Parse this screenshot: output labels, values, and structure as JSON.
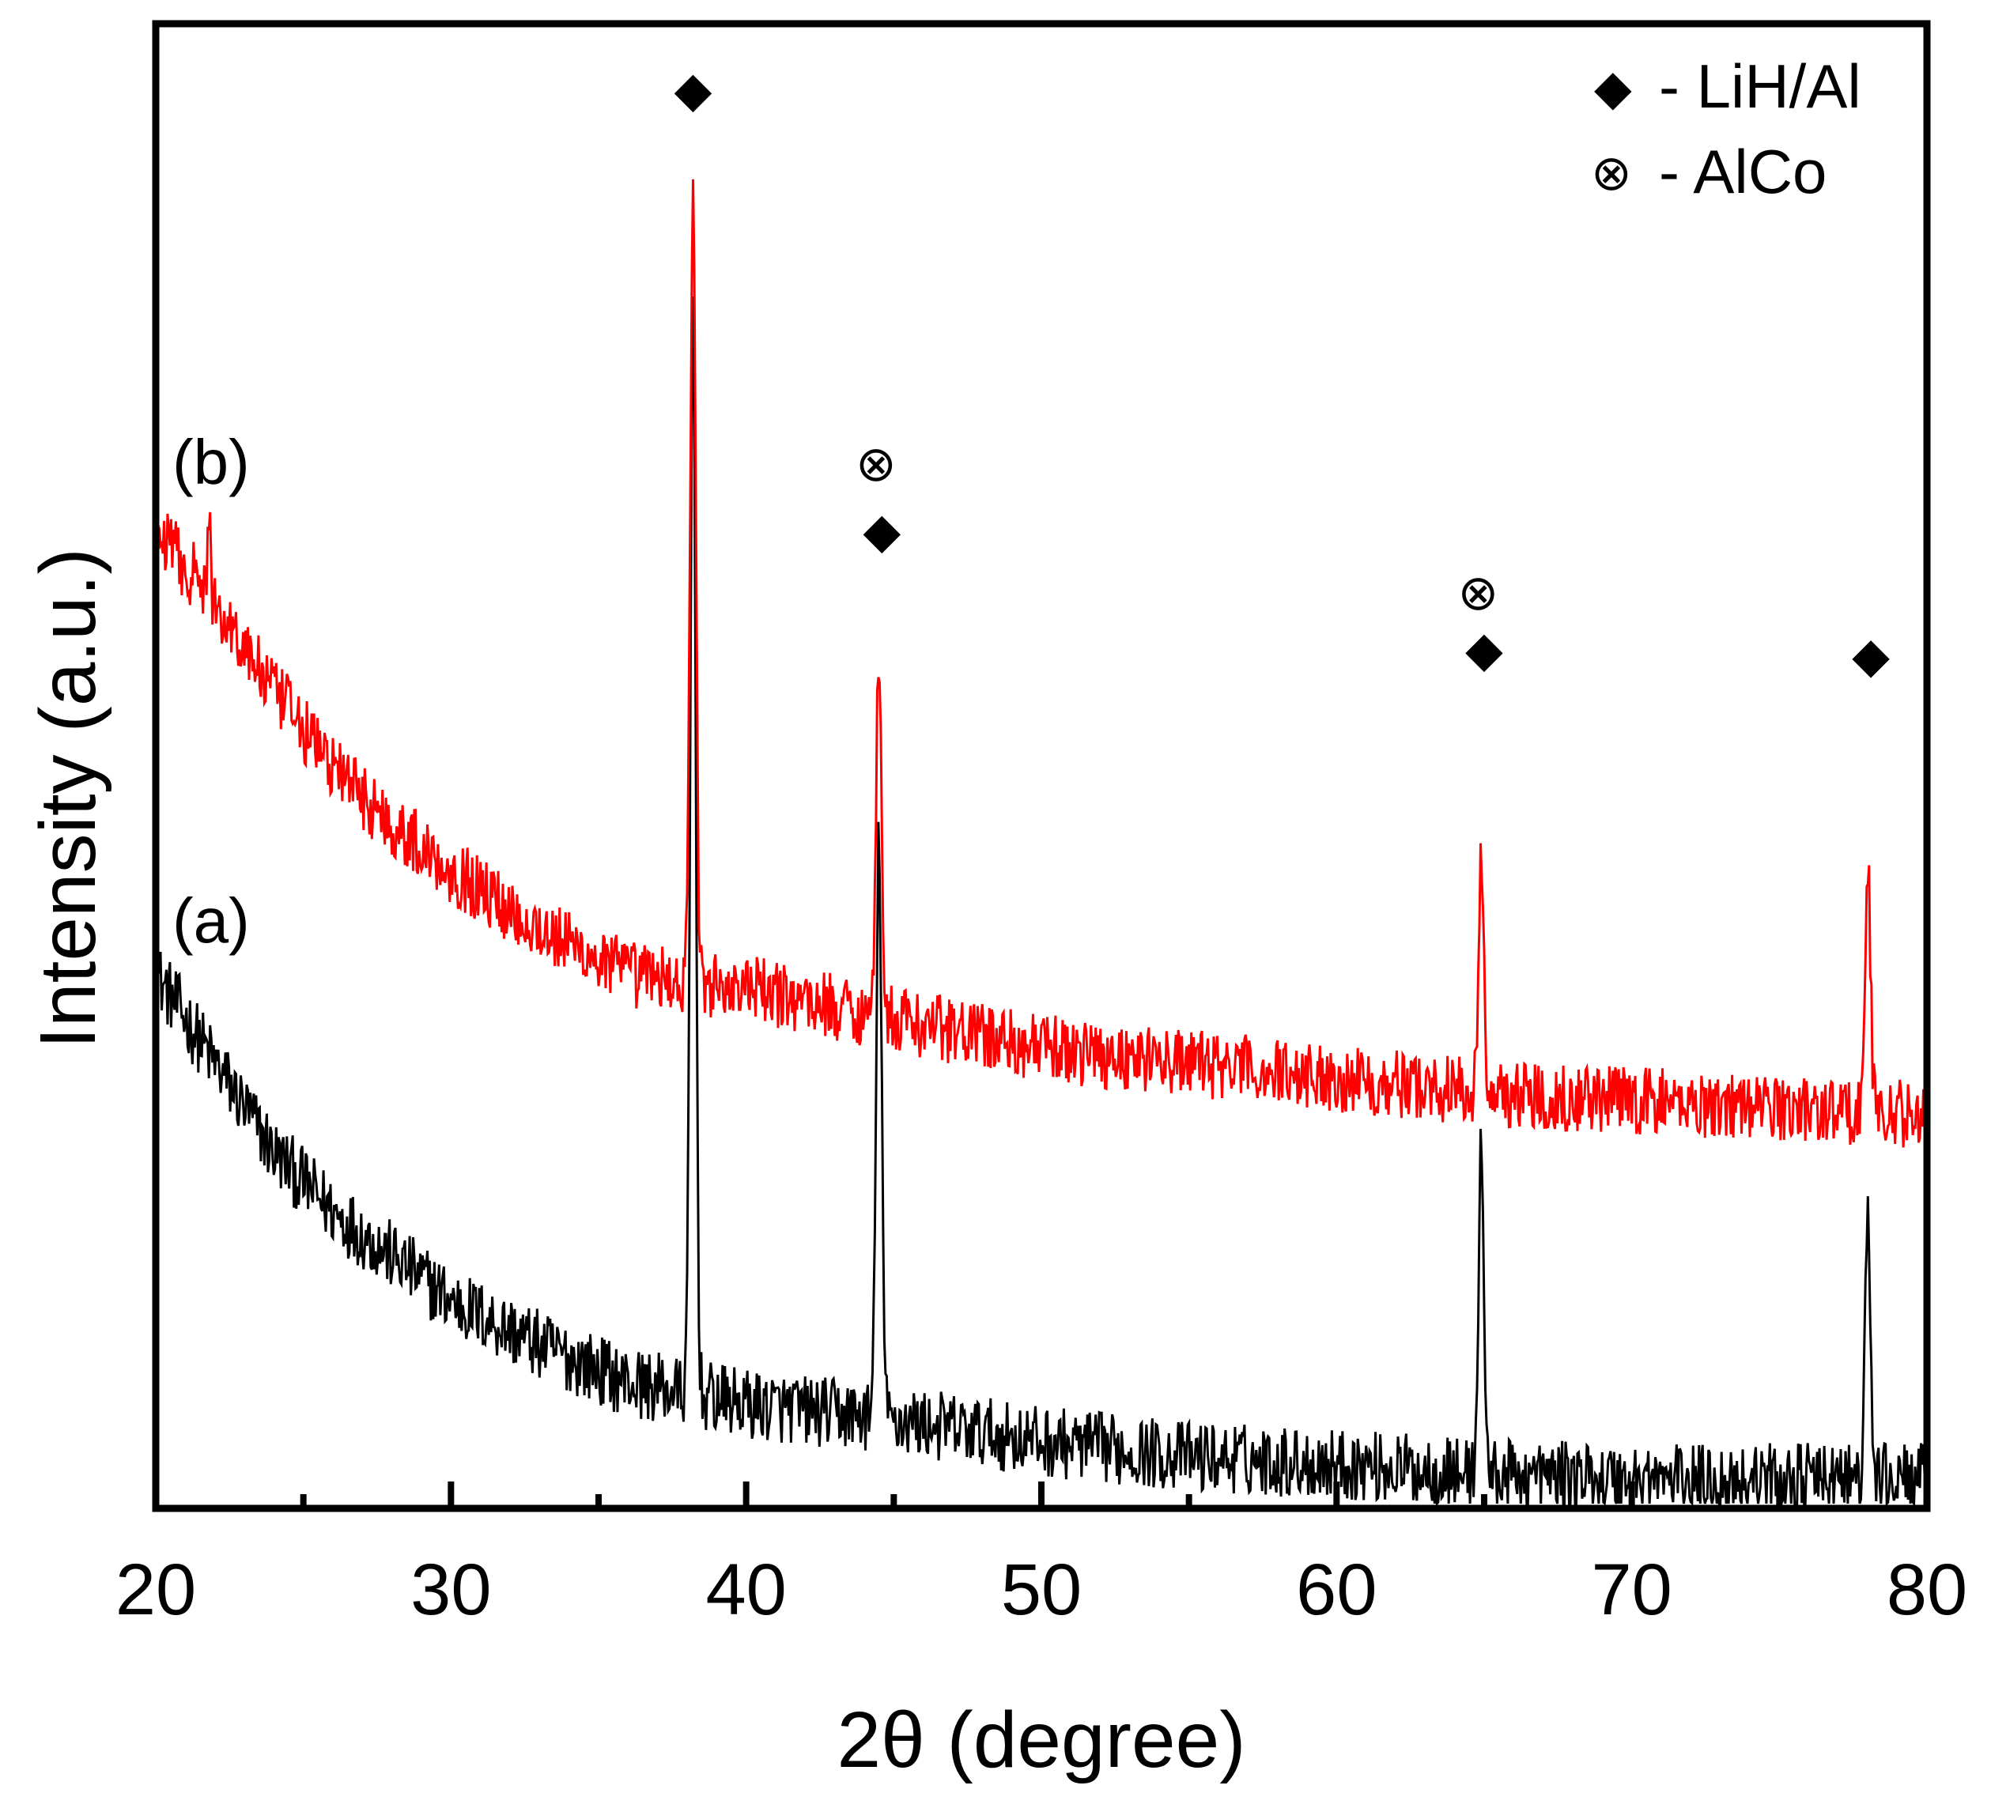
{
  "chart_data": {
    "type": "line",
    "title": "",
    "xlabel": "2θ (degree)",
    "ylabel": "Intensity (a.u.)",
    "xlim": [
      20,
      80
    ],
    "ylim": [
      0,
      100
    ],
    "x_major_ticks": [
      20,
      30,
      40,
      50,
      60,
      70,
      80
    ],
    "x_minor_ticks": [
      25,
      35,
      45,
      55,
      65,
      75
    ],
    "x_tick_labels": [
      "20",
      "30",
      "40",
      "50",
      "60",
      "70",
      "80"
    ],
    "grid": false,
    "legend": {
      "position": "top-right",
      "entries": [
        {
          "symbol": "diamond",
          "glyph": "◆",
          "label": "- LiH/Al"
        },
        {
          "symbol": "circled-times",
          "glyph": "⊗",
          "label": "- AlCo"
        }
      ]
    },
    "series": [
      {
        "name": "(a)",
        "color": "#000000",
        "baseline": [
          [
            20,
            36
          ],
          [
            22,
            30
          ],
          [
            24,
            24
          ],
          [
            26,
            20
          ],
          [
            28,
            17
          ],
          [
            30,
            14
          ],
          [
            33,
            11
          ],
          [
            36,
            8.5
          ],
          [
            40,
            7
          ],
          [
            45,
            6
          ],
          [
            50,
            4.5
          ],
          [
            55,
            3.5
          ],
          [
            60,
            3
          ],
          [
            65,
            2.3
          ],
          [
            70,
            2
          ],
          [
            75,
            2
          ],
          [
            80,
            2
          ]
        ],
        "peaks": [
          [
            38.2,
            81
          ],
          [
            44.5,
            45
          ],
          [
            64.9,
            24
          ],
          [
            78.0,
            19
          ]
        ],
        "noise": 2.4
      },
      {
        "name": "(b)",
        "color": "#ff0000",
        "baseline": [
          [
            20,
            66
          ],
          [
            22,
            61
          ],
          [
            24,
            55
          ],
          [
            26,
            50
          ],
          [
            28,
            46
          ],
          [
            30,
            43
          ],
          [
            33,
            39
          ],
          [
            36,
            36
          ],
          [
            40,
            35
          ],
          [
            45,
            33
          ],
          [
            50,
            31
          ],
          [
            55,
            30
          ],
          [
            60,
            29
          ],
          [
            65,
            28
          ],
          [
            70,
            27.5
          ],
          [
            75,
            27
          ],
          [
            80,
            26.5
          ]
        ],
        "peaks": [
          [
            38.2,
            90
          ],
          [
            44.5,
            58
          ],
          [
            64.9,
            43
          ],
          [
            78.0,
            43
          ],
          [
            21.8,
            68
          ]
        ],
        "noise": 2.3
      }
    ],
    "annotations": [
      {
        "glyph": "◆",
        "x": 38.2,
        "y": 95.5
      },
      {
        "glyph": "⊗",
        "x": 44.4,
        "y": 70.3
      },
      {
        "glyph": "◆",
        "x": 44.6,
        "y": 65.8
      },
      {
        "glyph": "⊗",
        "x": 64.8,
        "y": 61.6
      },
      {
        "glyph": "◆",
        "x": 65.0,
        "y": 57.8
      },
      {
        "glyph": "◆",
        "x": 78.1,
        "y": 57.4
      }
    ]
  }
}
